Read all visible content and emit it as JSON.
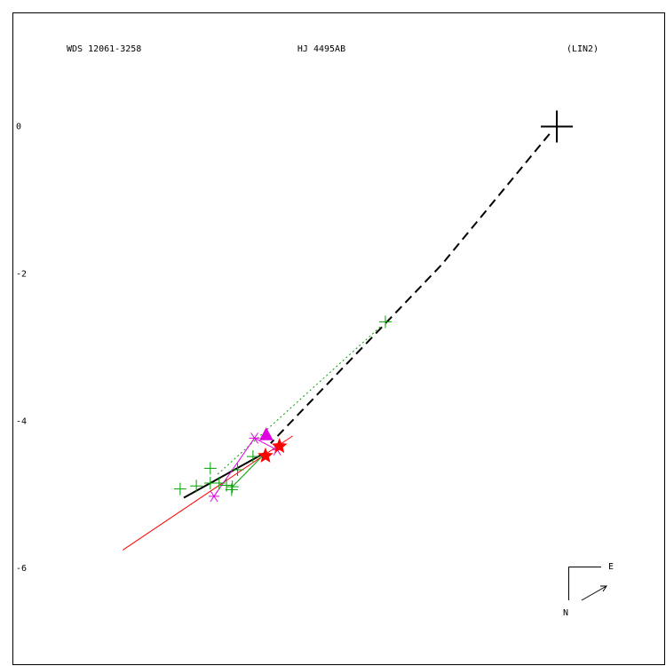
{
  "chart_data": {
    "type": "scatter",
    "title": "HJ 4495AB",
    "left_label": "WDS 12061-3258",
    "right_label": "(LIN2)",
    "compass": {
      "east": "E",
      "north": "N"
    },
    "xlim": [
      -7.4,
      1.46
    ],
    "ylim": [
      -7.3,
      1.55
    ],
    "yticks": [
      0,
      -2,
      -4,
      -6
    ],
    "grid": false,
    "primary": {
      "x": 0,
      "y": 0,
      "color": "#000000"
    },
    "series": [
      {
        "marker": "plus",
        "color": "#00a000",
        "x": [
          -5.12,
          -4.9,
          -4.71,
          -4.71,
          -4.59,
          -4.49,
          -4.41,
          -4.42,
          -4.34,
          -4.13,
          -2.33
        ],
        "y": [
          -4.92,
          -4.88,
          -4.64,
          -4.84,
          -4.84,
          -4.87,
          -4.89,
          -4.93,
          -4.66,
          -4.48,
          -2.65
        ]
      },
      {
        "marker": "asterisk",
        "color": "#e000e0",
        "x": [
          -4.66,
          -4.11,
          -3.8
        ],
        "y": [
          -5.02,
          -4.23,
          -4.39
        ]
      },
      {
        "marker": "triangle",
        "color": "#e000e0",
        "x": [
          -3.95
        ],
        "y": [
          -4.18
        ]
      },
      {
        "marker": "star",
        "color": "#ff0000",
        "x": [
          -3.96,
          -3.77
        ],
        "y": [
          -4.47,
          -4.34
        ]
      }
    ],
    "lines": [
      {
        "color": "#000000",
        "style": "dashed",
        "width": 2,
        "x": [
          -0.1,
          -1.57,
          -3.89
        ],
        "y": [
          -0.1,
          -1.88,
          -4.3
        ]
      },
      {
        "color": "#ff0000",
        "style": "solid",
        "width": 1,
        "x": [
          -5.9,
          -3.59
        ],
        "y": [
          -5.75,
          -4.2
        ]
      },
      {
        "color": "#000000",
        "style": "solid",
        "width": 2,
        "x": [
          -5.07,
          -3.95
        ],
        "y": [
          -5.04,
          -4.42
        ]
      },
      {
        "color": "#00a000",
        "style": "dotted",
        "width": 1,
        "x": [
          -4.61,
          -2.39
        ],
        "y": [
          -4.72,
          -2.71
        ]
      },
      {
        "color": "#e000e0",
        "style": "solid",
        "width": 1,
        "x": [
          -4.66,
          -4.11,
          -3.8
        ],
        "y": [
          -5.02,
          -4.23,
          -4.39
        ]
      },
      {
        "color": "#00a000",
        "style": "solid",
        "width": 1,
        "x": [
          -4.41,
          -3.95
        ],
        "y": [
          -4.89,
          -4.42
        ]
      }
    ]
  }
}
